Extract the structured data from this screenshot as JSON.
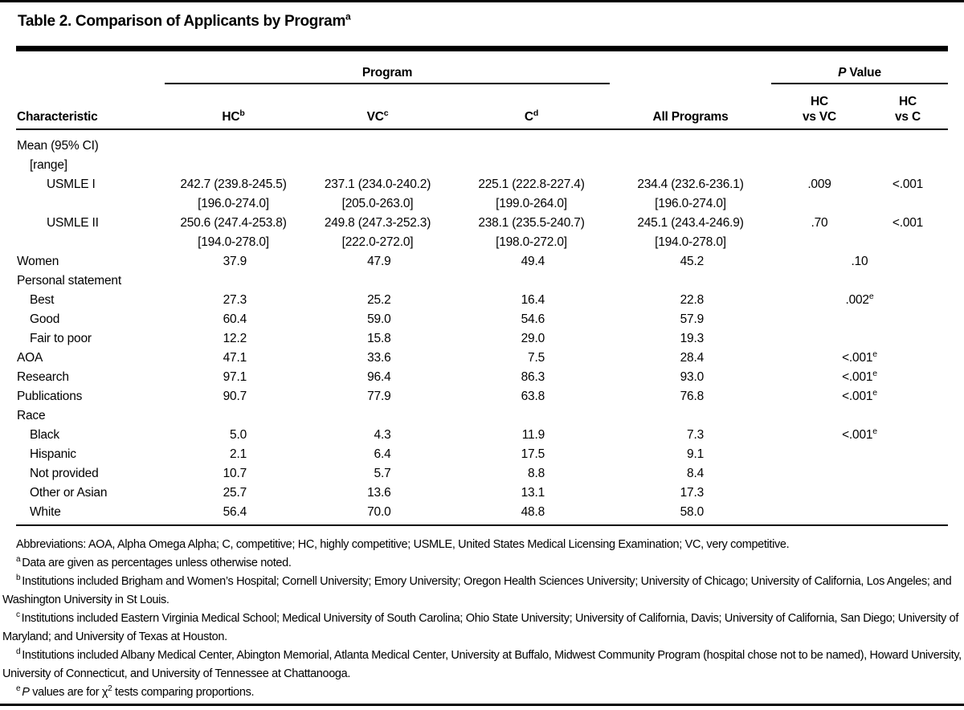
{
  "title": {
    "text": "Table 2. Comparison of Applicants by Program",
    "sup": "a"
  },
  "header": {
    "characteristic": "Characteristic",
    "program_group": "Program",
    "pvalue_group": {
      "italic": "P",
      "rest": " Value"
    },
    "cols": [
      {
        "label": "HC",
        "sup": "b"
      },
      {
        "label": "VC",
        "sup": "c"
      },
      {
        "label": "C",
        "sup": "d"
      },
      {
        "label": "All Programs"
      },
      {
        "line1": "HC",
        "line2": "vs VC"
      },
      {
        "line1": "HC",
        "line2": "vs C"
      }
    ]
  },
  "rows": [
    {
      "label": "Mean (95% CI)",
      "indent": 0
    },
    {
      "label": "[range]",
      "indent": 1
    },
    {
      "label": "USMLE I",
      "indent": 2,
      "cells": [
        [
          "242.7 (239.8-245.5)",
          "[196.0-274.0]"
        ],
        [
          "237.1 (234.0-240.2)",
          "[205.0-263.0]"
        ],
        [
          "225.1 (222.8-227.4)",
          "[199.0-264.0]"
        ],
        [
          "234.4 (232.6-236.1)",
          "[196.0-274.0]"
        ]
      ],
      "p1": ".009",
      "p2": "<.001"
    },
    {
      "label": "USMLE II",
      "indent": 2,
      "cells": [
        [
          "250.6 (247.4-253.8)",
          "[194.0-278.0]"
        ],
        [
          "249.8 (247.3-252.3)",
          "[222.0-272.0]"
        ],
        [
          "238.1 (235.5-240.7)",
          "[198.0-272.0]"
        ],
        [
          "245.1 (243.4-246.9)",
          "[194.0-278.0]"
        ]
      ],
      "p1": ".70",
      "p2": "<.001"
    },
    {
      "label": "Women",
      "indent": 0,
      "cells": [
        "37.9",
        "47.9",
        "49.4",
        "45.2"
      ],
      "p_span": ".10"
    },
    {
      "label": "Personal statement",
      "indent": 0
    },
    {
      "label": "Best",
      "indent": 1,
      "cells": [
        "27.3",
        "25.2",
        "16.4",
        "22.8"
      ],
      "p_span": ".002",
      "p_sup": "e"
    },
    {
      "label": "Good",
      "indent": 1,
      "cells": [
        "60.4",
        "59.0",
        "54.6",
        "57.9"
      ]
    },
    {
      "label": "Fair to poor",
      "indent": 1,
      "cells": [
        "12.2",
        "15.8",
        "29.0",
        "19.3"
      ]
    },
    {
      "label": "AOA",
      "indent": 0,
      "cells": [
        "47.1",
        "33.6",
        "7.5",
        "28.4"
      ],
      "p_span": "<.001",
      "p_sup": "e"
    },
    {
      "label": "Research",
      "indent": 0,
      "cells": [
        "97.1",
        "96.4",
        "86.3",
        "93.0"
      ],
      "p_span": "<.001",
      "p_sup": "e"
    },
    {
      "label": "Publications",
      "indent": 0,
      "cells": [
        "90.7",
        "77.9",
        "63.8",
        "76.8"
      ],
      "p_span": "<.001",
      "p_sup": "e"
    },
    {
      "label": "Race",
      "indent": 0
    },
    {
      "label": "Black",
      "indent": 1,
      "cells": [
        "5.0",
        "4.3",
        "11.9",
        "7.3"
      ],
      "p_span": "<.001",
      "p_sup": "e"
    },
    {
      "label": "Hispanic",
      "indent": 1,
      "cells": [
        "2.1",
        "6.4",
        "17.5",
        "9.1"
      ]
    },
    {
      "label": "Not provided",
      "indent": 1,
      "cells": [
        "10.7",
        "5.7",
        "8.8",
        "8.4"
      ]
    },
    {
      "label": "Other or Asian",
      "indent": 1,
      "cells": [
        "25.7",
        "13.6",
        "13.1",
        "17.3"
      ]
    },
    {
      "label": "White",
      "indent": 1,
      "cells": [
        "56.4",
        "70.0",
        "48.8",
        "58.0"
      ]
    }
  ],
  "footnotes": [
    {
      "segments": [
        {
          "s": "plain",
          "t": "Abbreviations: AOA, Alpha Omega Alpha; C, competitive; HC, highly competitive; USMLE, United States Medical Licensing Examination; VC, very competitive."
        }
      ]
    },
    {
      "segments": [
        {
          "s": "sup",
          "t": "a"
        },
        {
          "s": "plain",
          "t": "Data are given as percentages unless otherwise noted."
        }
      ]
    },
    {
      "segments": [
        {
          "s": "sup",
          "t": "b"
        },
        {
          "s": "plain",
          "t": "Institutions included Brigham and Women’s Hospital; Cornell University; Emory University; Oregon Health Sciences University; University of Chicago; University of California, Los Angeles; and Washington University in St Louis."
        }
      ]
    },
    {
      "segments": [
        {
          "s": "sup",
          "t": "c"
        },
        {
          "s": "plain",
          "t": "Institutions included Eastern Virginia Medical School; Medical University of South Carolina; Ohio State University; University of California, Davis; University of California, San Diego; University of Maryland; and University of Texas at Houston."
        }
      ]
    },
    {
      "segments": [
        {
          "s": "sup",
          "t": "d"
        },
        {
          "s": "plain",
          "t": "Institutions included Albany Medical Center, Abington Memorial, Atlanta Medical Center, University at Buffalo, Midwest Community Program (hospital chose not to be named), Howard University, University of Connecticut, and University of Tennessee at Chattanooga."
        }
      ]
    },
    {
      "segments": [
        {
          "s": "sup",
          "t": "e"
        },
        {
          "s": "italic",
          "t": "P"
        },
        {
          "s": "plain",
          "t": " values are for χ"
        },
        {
          "s": "sup2",
          "t": "2"
        },
        {
          "s": "plain",
          "t": " tests comparing proportions."
        }
      ]
    }
  ]
}
